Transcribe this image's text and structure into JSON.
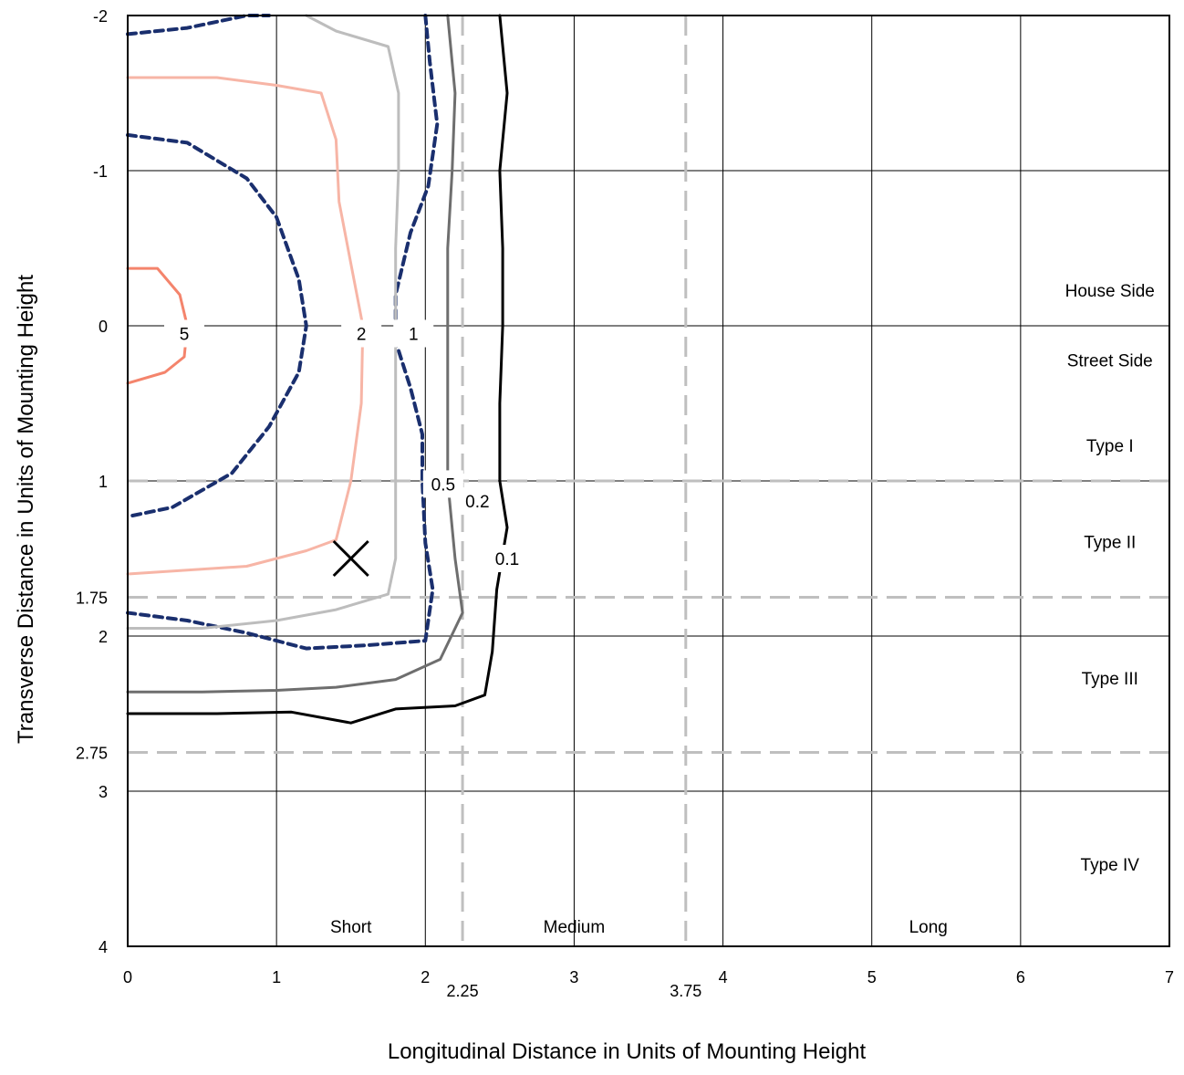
{
  "chart_data": {
    "type": "contour",
    "xlabel": "Longitudinal Distance in Units of Mounting Height",
    "ylabel": "Transverse Distance in Units of Mounting Height",
    "xlim": [
      0,
      7
    ],
    "ylim": [
      -2,
      4
    ],
    "y_inverted": true,
    "grid": true,
    "x_ticks": [
      "0",
      "1",
      "2",
      "3",
      "4",
      "5",
      "6",
      "7"
    ],
    "x_extra_ticks": [
      "2.25",
      "3.75"
    ],
    "y_ticks": [
      "-2",
      "-1",
      "0",
      "1",
      "2",
      "3",
      "4"
    ],
    "y_extra_ticks": [
      "1.75",
      "2.75"
    ],
    "reference_lines": {
      "vertical": [
        2.25,
        3.75
      ],
      "horizontal": [
        1,
        1.75,
        2.75
      ]
    },
    "region_labels": [
      {
        "text": "House Side",
        "x": 6.6,
        "y": -0.23
      },
      {
        "text": "Street Side",
        "x": 6.6,
        "y": 0.22
      },
      {
        "text": "Type I",
        "x": 6.6,
        "y": 0.77
      },
      {
        "text": "Type II",
        "x": 6.6,
        "y": 1.39
      },
      {
        "text": "Type III",
        "x": 6.6,
        "y": 2.27
      },
      {
        "text": "Type IV",
        "x": 6.6,
        "y": 3.47
      },
      {
        "text": "Short",
        "x": 1.5,
        "y": 3.87
      },
      {
        "text": "Medium",
        "x": 3.0,
        "y": 3.87
      },
      {
        "text": "Long",
        "x": 5.38,
        "y": 3.87
      }
    ],
    "max_point": {
      "x": 1.5,
      "y": 1.5,
      "marker": "x"
    },
    "contours": [
      {
        "label": "5",
        "color": "#f4846c",
        "style": "solid",
        "label_at": [
          0.38,
          0.05
        ],
        "points": [
          [
            0,
            -0.37
          ],
          [
            0.2,
            -0.37
          ],
          [
            0.35,
            -0.2
          ],
          [
            0.4,
            0.0
          ],
          [
            0.38,
            0.2
          ],
          [
            0.25,
            0.3
          ],
          [
            0,
            0.37
          ]
        ]
      },
      {
        "label": "2",
        "color": "#f7b5a6",
        "style": "solid",
        "label_at": [
          1.57,
          0.05
        ],
        "points": [
          [
            0,
            -1.6
          ],
          [
            0.6,
            -1.6
          ],
          [
            1.0,
            -1.55
          ],
          [
            1.3,
            -1.5
          ],
          [
            1.4,
            -1.2
          ],
          [
            1.42,
            -0.8
          ],
          [
            1.5,
            -0.4
          ],
          [
            1.58,
            0.0
          ],
          [
            1.57,
            0.5
          ],
          [
            1.5,
            1.0
          ],
          [
            1.4,
            1.38
          ],
          [
            1.2,
            1.45
          ],
          [
            0.8,
            1.55
          ],
          [
            0,
            1.6
          ]
        ]
      },
      {
        "label": "1",
        "color": "#1a2f6e",
        "style": "dashed",
        "label_at": [
          1.92,
          0.05
        ],
        "points": [
          [
            0,
            -1.88
          ],
          [
            0.4,
            -1.92
          ],
          [
            0.8,
            -2.0
          ],
          [
            0.95,
            -2.0
          ]
        ],
        "extra": [
          [
            [
              0,
              -1.23
            ],
            [
              0.4,
              -1.18
            ],
            [
              0.8,
              -0.95
            ],
            [
              1.0,
              -0.7
            ],
            [
              1.15,
              -0.3
            ],
            [
              1.2,
              0.0
            ],
            [
              1.15,
              0.3
            ],
            [
              0.95,
              0.65
            ],
            [
              0.7,
              0.95
            ],
            [
              0.3,
              1.17
            ],
            [
              0,
              1.23
            ]
          ],
          [
            [
              2.0,
              -2.0
            ],
            [
              2.03,
              -1.7
            ],
            [
              2.08,
              -1.3
            ],
            [
              2.02,
              -0.9
            ],
            [
              1.9,
              -0.6
            ],
            [
              1.8,
              -0.2
            ],
            [
              1.8,
              0.1
            ],
            [
              1.9,
              0.4
            ],
            [
              1.98,
              0.7
            ],
            [
              1.98,
              1.0
            ],
            [
              2.0,
              1.4
            ],
            [
              2.05,
              1.7
            ],
            [
              2.0,
              2.03
            ],
            [
              1.6,
              2.06
            ],
            [
              1.2,
              2.08
            ],
            [
              0.8,
              1.98
            ],
            [
              0.4,
              1.9
            ],
            [
              0,
              1.85
            ]
          ]
        ]
      },
      {
        "label": "0.5",
        "color": "#bdbdbd",
        "style": "solid",
        "label_at": [
          2.12,
          1.02
        ],
        "points": [
          [
            1.2,
            -2.0
          ],
          [
            1.4,
            -1.9
          ],
          [
            1.75,
            -1.8
          ],
          [
            1.82,
            -1.5
          ],
          [
            1.82,
            -1.0
          ],
          [
            1.8,
            -0.5
          ],
          [
            1.8,
            0.0
          ],
          [
            1.8,
            0.5
          ],
          [
            1.8,
            1.0
          ],
          [
            1.8,
            1.5
          ],
          [
            1.75,
            1.73
          ],
          [
            1.4,
            1.83
          ],
          [
            1.0,
            1.9
          ],
          [
            0.5,
            1.95
          ],
          [
            0,
            1.95
          ]
        ]
      },
      {
        "label": "0.2",
        "color": "#6e6e6e",
        "style": "solid",
        "label_at": [
          2.35,
          1.13
        ],
        "points": [
          [
            2.15,
            -2.0
          ],
          [
            2.2,
            -1.5
          ],
          [
            2.18,
            -1.0
          ],
          [
            2.15,
            -0.5
          ],
          [
            2.15,
            0.0
          ],
          [
            2.15,
            0.5
          ],
          [
            2.15,
            1.0
          ],
          [
            2.2,
            1.5
          ],
          [
            2.25,
            1.85
          ],
          [
            2.1,
            2.15
          ],
          [
            1.8,
            2.28
          ],
          [
            1.4,
            2.33
          ],
          [
            1.0,
            2.35
          ],
          [
            0.5,
            2.36
          ],
          [
            0,
            2.36
          ]
        ]
      },
      {
        "label": "0.1",
        "color": "#000000",
        "style": "solid",
        "label_at": [
          2.55,
          1.5
        ],
        "points": [
          [
            2.5,
            -2.0
          ],
          [
            2.55,
            -1.5
          ],
          [
            2.5,
            -1.0
          ],
          [
            2.52,
            -0.5
          ],
          [
            2.52,
            0.0
          ],
          [
            2.5,
            0.5
          ],
          [
            2.5,
            1.0
          ],
          [
            2.55,
            1.3
          ],
          [
            2.48,
            1.7
          ],
          [
            2.45,
            2.1
          ],
          [
            2.4,
            2.38
          ],
          [
            2.2,
            2.45
          ],
          [
            1.8,
            2.47
          ],
          [
            1.5,
            2.56
          ],
          [
            1.1,
            2.49
          ],
          [
            0.6,
            2.5
          ],
          [
            0,
            2.5
          ]
        ]
      }
    ]
  }
}
